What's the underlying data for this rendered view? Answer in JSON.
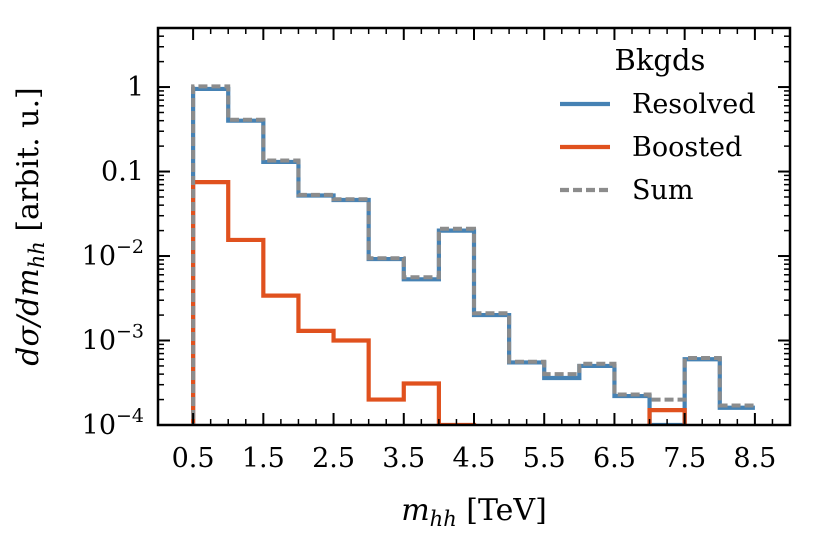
{
  "chart_data": {
    "type": "line",
    "step": true,
    "xlabel": "m_hh [TeV]",
    "ylabel": "dσ/dm_hh [arbit. u.]",
    "yscale": "log",
    "xlim": [
      0,
      9
    ],
    "ylim": [
      0.0001,
      5
    ],
    "x_ticks": [
      0.5,
      1.5,
      2.5,
      3.5,
      4.5,
      5.5,
      6.5,
      7.5,
      8.5
    ],
    "x_tick_labels": [
      "0.5",
      "1.5",
      "2.5",
      "3.5",
      "4.5",
      "5.5",
      "6.5",
      "7.5",
      "8.5"
    ],
    "y_ticks": [
      {
        "value": 1,
        "label": "1"
      },
      {
        "value": 0.1,
        "label": "0.1"
      },
      {
        "value": 0.01,
        "label": "10",
        "exp": "−2"
      },
      {
        "value": 0.001,
        "label": "10",
        "exp": "−3"
      },
      {
        "value": 0.0001,
        "label": "10",
        "exp": "−4"
      }
    ],
    "bin_edges": [
      0.5,
      1.0,
      1.5,
      2.0,
      2.5,
      3.0,
      3.5,
      4.0,
      4.5,
      5.0,
      5.5,
      6.0,
      6.5,
      7.0,
      7.5,
      8.0,
      8.5
    ],
    "legend": {
      "title": "Bkgds",
      "position": "top-right"
    },
    "series": [
      {
        "name": "Resolved",
        "color": "#4682b4",
        "style": "solid",
        "values": [
          0.95,
          0.4,
          0.13,
          0.052,
          0.046,
          0.0092,
          0.0053,
          0.02,
          0.002,
          0.00055,
          0.00036,
          0.0005,
          0.00022,
          0.0001,
          0.0006,
          0.00016
        ]
      },
      {
        "name": "Boosted",
        "color": "#e0511e",
        "style": "solid",
        "values": [
          0.075,
          0.0155,
          0.0034,
          0.0013,
          0.001,
          0.0002,
          0.00031,
          0.0001,
          null,
          null,
          null,
          null,
          null,
          0.00015,
          null,
          null
        ]
      },
      {
        "name": "Sum",
        "color": "#8c8c8c",
        "style": "dashed",
        "values": [
          1.02,
          0.41,
          0.135,
          0.053,
          0.047,
          0.0094,
          0.0056,
          0.021,
          0.0021,
          0.00056,
          0.0004,
          0.00053,
          0.00023,
          0.0002,
          0.00062,
          0.00017
        ]
      }
    ]
  }
}
